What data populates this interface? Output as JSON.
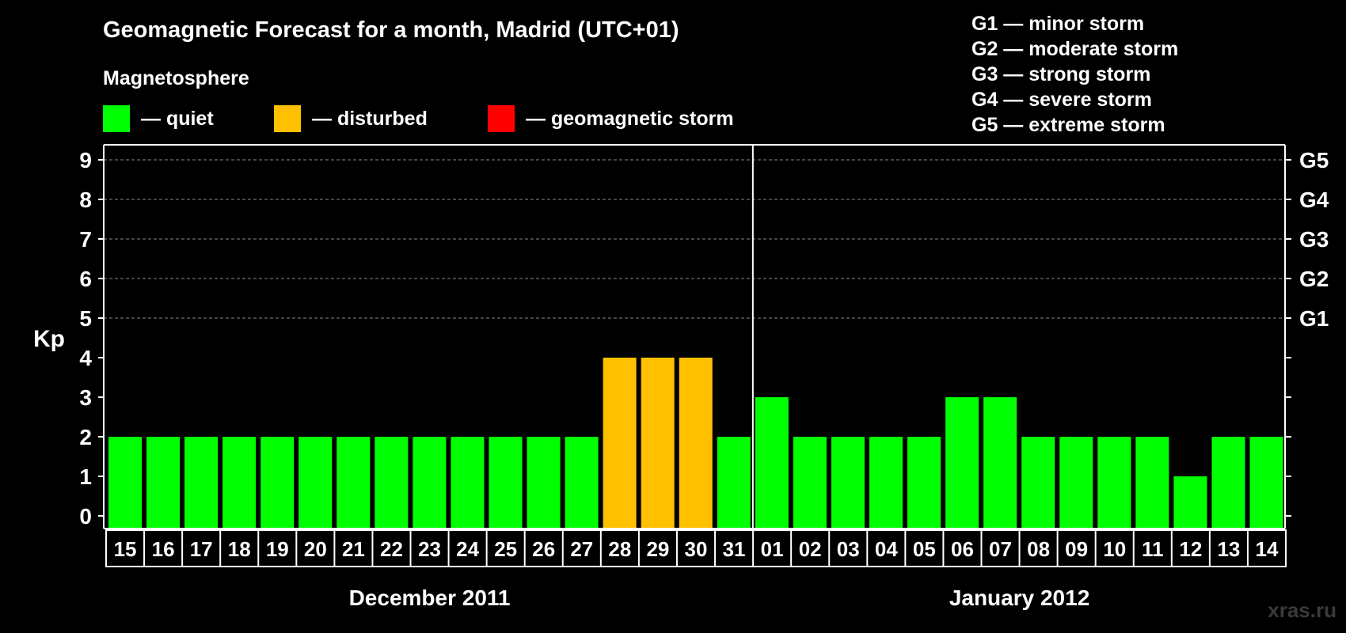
{
  "title": "Geomagnetic Forecast for a month, Madrid (UTC+01)",
  "legend": {
    "heading": "Magnetosphere",
    "items": [
      {
        "label": "— quiet",
        "color": "#00ff00"
      },
      {
        "label": "— disturbed",
        "color": "#ffc000"
      },
      {
        "label": "— geomagnetic storm",
        "color": "#ff0000"
      }
    ]
  },
  "storm_levels": [
    "G1 — minor storm",
    "G2 — moderate storm",
    "G3 — strong storm",
    "G4 — severe storm",
    "G5 — extreme storm"
  ],
  "watermark": "xras.ru",
  "chart_data": {
    "type": "bar",
    "title": "Geomagnetic Forecast for a month, Madrid (UTC+01)",
    "ylabel": "Kp",
    "ylim": [
      0,
      9
    ],
    "yticks": [
      "0",
      "1",
      "2",
      "3",
      "4",
      "5",
      "6",
      "7",
      "8",
      "9"
    ],
    "right_axis_labels": [
      {
        "kp": 5,
        "label": "G1"
      },
      {
        "kp": 6,
        "label": "G2"
      },
      {
        "kp": 7,
        "label": "G3"
      },
      {
        "kp": 8,
        "label": "G4"
      },
      {
        "kp": 9,
        "label": "G5"
      }
    ],
    "grid": "dashed horizontal at Kp 5–9",
    "categories": [
      "15",
      "16",
      "17",
      "18",
      "19",
      "20",
      "21",
      "22",
      "23",
      "24",
      "25",
      "26",
      "27",
      "28",
      "29",
      "30",
      "31",
      "01",
      "02",
      "03",
      "04",
      "05",
      "06",
      "07",
      "08",
      "09",
      "10",
      "11",
      "12",
      "13",
      "14"
    ],
    "values": [
      2,
      2,
      2,
      2,
      2,
      2,
      2,
      2,
      2,
      2,
      2,
      2,
      2,
      4,
      4,
      4,
      2,
      3,
      2,
      2,
      2,
      2,
      3,
      3,
      2,
      2,
      2,
      2,
      1,
      2,
      2
    ],
    "months": [
      {
        "label": "December 2011",
        "count": 17
      },
      {
        "label": "January 2012",
        "count": 14
      }
    ],
    "colors": {
      "quiet": "#00ff00",
      "disturbed": "#ffc000",
      "storm": "#ff0000"
    }
  }
}
